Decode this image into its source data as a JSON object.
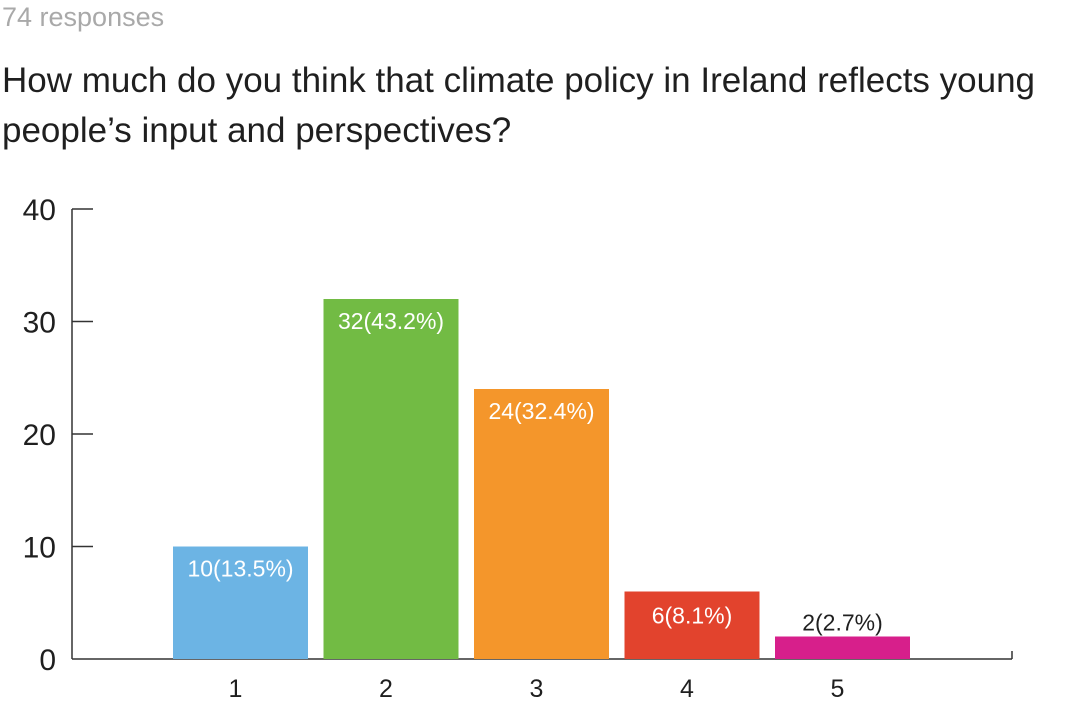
{
  "header": {
    "responses": "74 responses",
    "question": "How much do you think that climate policy in Ireland reflects young people’s input and perspectives?"
  },
  "chart_data": {
    "type": "bar",
    "categories": [
      "1",
      "2",
      "3",
      "4",
      "5"
    ],
    "values": [
      10,
      32,
      24,
      6,
      2
    ],
    "data_labels": [
      "10(13.5%)",
      "32(43.2%)",
      "24(32.4%)",
      "6(8.1%)",
      "2(2.7%)"
    ],
    "colors": [
      "#6cb4e4",
      "#72bb44",
      "#f4962b",
      "#e2432d",
      "#d71f8b"
    ],
    "label_colors": [
      "#ffffff",
      "#ffffff",
      "#ffffff",
      "#ffffff",
      "#1f1f1f"
    ],
    "y_ticks": [
      "0",
      "10",
      "20",
      "30",
      "40"
    ],
    "ylim": [
      0,
      40
    ],
    "title": "How much do you think that climate policy in Ireland reflects young people’s input and perspectives?",
    "xlabel": "",
    "ylabel": "",
    "grid": false,
    "legend": "none"
  }
}
